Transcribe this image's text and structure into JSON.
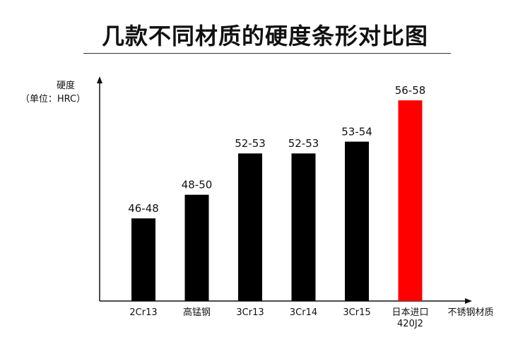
{
  "title": "几款不同材质的硬度条形对比图",
  "chart_data": {
    "type": "bar",
    "title": "几款不同材质的硬度条形对比图",
    "ylabel": "硬度",
    "ylabel_unit": "（单位：HRC）",
    "xlabel": "不锈钢材质",
    "categories": [
      "2Cr13",
      "高锰钢",
      "3Cr13",
      "3Cr14",
      "3Cr15",
      "日本进口\n420J2"
    ],
    "value_labels": [
      "46-48",
      "48-50",
      "52-53",
      "52-53",
      "53-54",
      "56-58"
    ],
    "ranges": [
      [
        46,
        48
      ],
      [
        48,
        50
      ],
      [
        52,
        53
      ],
      [
        52,
        53
      ],
      [
        53,
        54
      ],
      [
        56,
        58
      ]
    ],
    "values": [
      47,
      49,
      52.5,
      52.5,
      53.5,
      57
    ],
    "colors": [
      "#000000",
      "#000000",
      "#000000",
      "#000000",
      "#000000",
      "#ff0000"
    ],
    "highlight_color": "#ff0000",
    "bar_color": "#000000",
    "axis_color": "#111111",
    "ylim": [
      40,
      57
    ],
    "grid": false,
    "legend": "none"
  }
}
